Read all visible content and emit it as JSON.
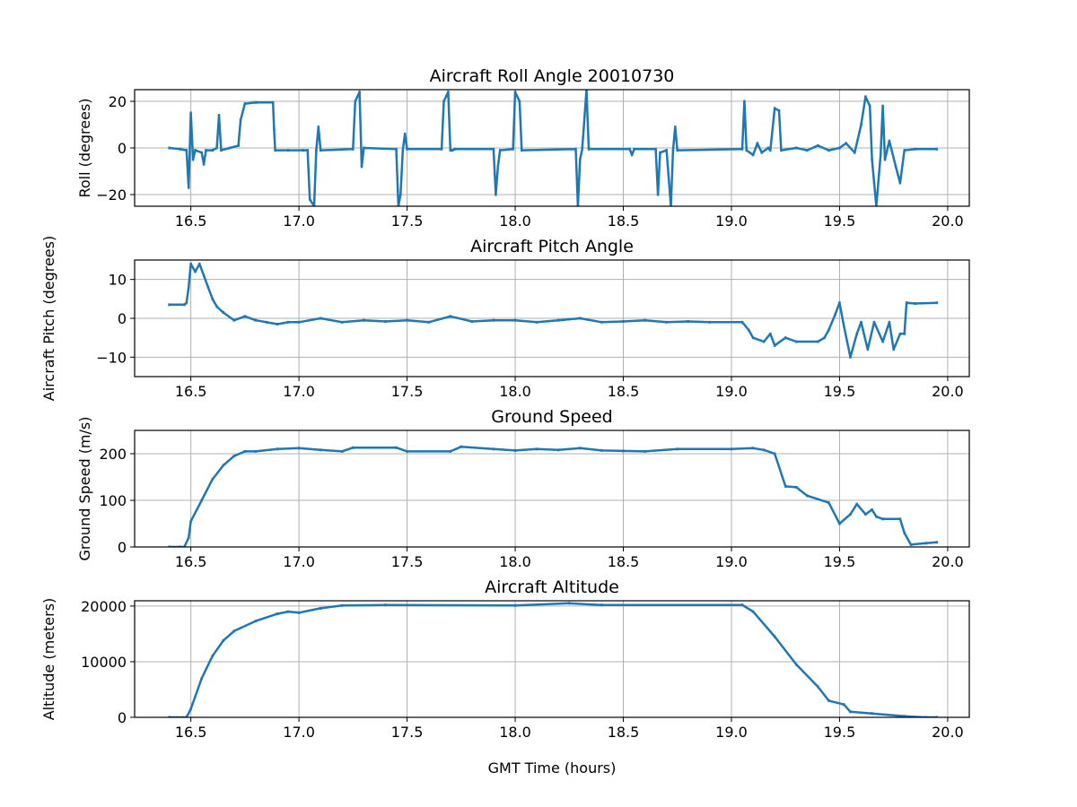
{
  "xlabel": "GMT Time (hours)",
  "chart_data": [
    {
      "type": "scatter",
      "title": "Aircraft Roll Angle 20010730",
      "ylabel": "Roll (degrees)",
      "xlim": [
        16.24,
        20.1
      ],
      "ylim": [
        -25,
        25
      ],
      "xticks": [
        "16.5",
        "17.0",
        "17.5",
        "18.0",
        "18.5",
        "19.0",
        "19.5",
        "20.0"
      ],
      "yticks": [
        -20,
        0,
        20
      ],
      "ytick_labels": [
        "−20",
        "0",
        "20"
      ],
      "grid": true,
      "color": "#1f77b4",
      "points": [
        [
          16.4,
          0
        ],
        [
          16.45,
          -0.5
        ],
        [
          16.48,
          -1
        ],
        [
          16.49,
          -17
        ],
        [
          16.5,
          15
        ],
        [
          16.51,
          -5
        ],
        [
          16.52,
          -1
        ],
        [
          16.55,
          -2
        ],
        [
          16.56,
          -7
        ],
        [
          16.57,
          -1
        ],
        [
          16.6,
          -1
        ],
        [
          16.62,
          0
        ],
        [
          16.63,
          14
        ],
        [
          16.64,
          -1
        ],
        [
          16.68,
          0
        ],
        [
          16.72,
          1
        ],
        [
          16.73,
          12
        ],
        [
          16.75,
          19
        ],
        [
          16.8,
          19.5
        ],
        [
          16.88,
          19.5
        ],
        [
          16.885,
          8
        ],
        [
          16.89,
          -1
        ],
        [
          16.95,
          -1
        ],
        [
          17.02,
          -1
        ],
        [
          17.04,
          -1
        ],
        [
          17.05,
          -22
        ],
        [
          17.07,
          -25
        ],
        [
          17.08,
          -1
        ],
        [
          17.09,
          9
        ],
        [
          17.1,
          -1
        ],
        [
          17.25,
          -0.5
        ],
        [
          17.26,
          20
        ],
        [
          17.28,
          24
        ],
        [
          17.29,
          -8
        ],
        [
          17.3,
          0
        ],
        [
          17.45,
          -0.5
        ],
        [
          17.46,
          -25
        ],
        [
          17.47,
          -20
        ],
        [
          17.48,
          -1
        ],
        [
          17.49,
          6
        ],
        [
          17.5,
          -0.5
        ],
        [
          17.66,
          -0.5
        ],
        [
          17.67,
          20
        ],
        [
          17.69,
          24
        ],
        [
          17.7,
          -1
        ],
        [
          17.71,
          -1
        ],
        [
          17.72,
          -0.5
        ],
        [
          17.9,
          -0.5
        ],
        [
          17.91,
          -20
        ],
        [
          17.92,
          -8
        ],
        [
          17.93,
          -1
        ],
        [
          17.99,
          -0.5
        ],
        [
          18.0,
          24
        ],
        [
          18.02,
          20
        ],
        [
          18.03,
          -1
        ],
        [
          18.28,
          -0.5
        ],
        [
          18.29,
          -25
        ],
        [
          18.3,
          -5
        ],
        [
          18.31,
          -0.5
        ],
        [
          18.33,
          25
        ],
        [
          18.34,
          -0.5
        ],
        [
          18.53,
          -0.5
        ],
        [
          18.54,
          -3
        ],
        [
          18.55,
          -0.5
        ],
        [
          18.65,
          -0.5
        ],
        [
          18.66,
          -20
        ],
        [
          18.67,
          -2
        ],
        [
          18.7,
          -1
        ],
        [
          18.72,
          -25
        ],
        [
          18.73,
          -1
        ],
        [
          18.74,
          9
        ],
        [
          18.75,
          -1
        ],
        [
          19.05,
          -0.5
        ],
        [
          19.06,
          20
        ],
        [
          19.07,
          -1
        ],
        [
          19.1,
          -3
        ],
        [
          19.12,
          2
        ],
        [
          19.14,
          -2
        ],
        [
          19.17,
          0
        ],
        [
          19.18,
          -1
        ],
        [
          19.2,
          17
        ],
        [
          19.22,
          16
        ],
        [
          19.23,
          -1
        ],
        [
          19.3,
          0
        ],
        [
          19.35,
          -1
        ],
        [
          19.4,
          1
        ],
        [
          19.45,
          -1
        ],
        [
          19.5,
          0
        ],
        [
          19.53,
          2
        ],
        [
          19.57,
          -2
        ],
        [
          19.6,
          10
        ],
        [
          19.62,
          22
        ],
        [
          19.64,
          18
        ],
        [
          19.65,
          -5
        ],
        [
          19.66,
          -15
        ],
        [
          19.67,
          -25
        ],
        [
          19.69,
          -3
        ],
        [
          19.7,
          18
        ],
        [
          19.71,
          -5
        ],
        [
          19.73,
          3
        ],
        [
          19.76,
          -8
        ],
        [
          19.78,
          -15
        ],
        [
          19.8,
          -1
        ],
        [
          19.85,
          -0.5
        ],
        [
          19.95,
          -0.5
        ]
      ]
    },
    {
      "type": "scatter",
      "title": "Aircraft Pitch Angle",
      "ylabel": "Aircraft Pitch (degrees)",
      "xlim": [
        16.24,
        20.1
      ],
      "ylim": [
        -15,
        15
      ],
      "xticks": [
        "16.5",
        "17.0",
        "17.5",
        "18.0",
        "18.5",
        "19.0",
        "19.5",
        "20.0"
      ],
      "yticks": [
        -10,
        0,
        10
      ],
      "ytick_labels": [
        "−10",
        "0",
        "10"
      ],
      "grid": true,
      "color": "#1f77b4",
      "points": [
        [
          16.4,
          3.5
        ],
        [
          16.47,
          3.5
        ],
        [
          16.48,
          4
        ],
        [
          16.49,
          8
        ],
        [
          16.5,
          14
        ],
        [
          16.52,
          12
        ],
        [
          16.54,
          14
        ],
        [
          16.56,
          11
        ],
        [
          16.58,
          8
        ],
        [
          16.6,
          5
        ],
        [
          16.62,
          3
        ],
        [
          16.65,
          1.5
        ],
        [
          16.7,
          -0.5
        ],
        [
          16.75,
          0.5
        ],
        [
          16.8,
          -0.5
        ],
        [
          16.85,
          -1
        ],
        [
          16.9,
          -1.5
        ],
        [
          16.95,
          -1
        ],
        [
          17.0,
          -1
        ],
        [
          17.1,
          0
        ],
        [
          17.2,
          -1
        ],
        [
          17.3,
          -0.5
        ],
        [
          17.4,
          -0.8
        ],
        [
          17.5,
          -0.5
        ],
        [
          17.6,
          -1
        ],
        [
          17.7,
          0.5
        ],
        [
          17.8,
          -0.8
        ],
        [
          17.9,
          -0.5
        ],
        [
          18.0,
          -0.5
        ],
        [
          18.1,
          -1
        ],
        [
          18.2,
          -0.5
        ],
        [
          18.3,
          0
        ],
        [
          18.4,
          -1
        ],
        [
          18.5,
          -0.8
        ],
        [
          18.6,
          -0.5
        ],
        [
          18.7,
          -1
        ],
        [
          18.8,
          -0.8
        ],
        [
          18.9,
          -1
        ],
        [
          19.05,
          -1
        ],
        [
          19.08,
          -3
        ],
        [
          19.1,
          -5
        ],
        [
          19.15,
          -6
        ],
        [
          19.18,
          -4
        ],
        [
          19.2,
          -7
        ],
        [
          19.25,
          -5
        ],
        [
          19.3,
          -6
        ],
        [
          19.4,
          -6
        ],
        [
          19.43,
          -5
        ],
        [
          19.45,
          -3
        ],
        [
          19.48,
          1
        ],
        [
          19.5,
          4
        ],
        [
          19.52,
          -2
        ],
        [
          19.55,
          -10
        ],
        [
          19.58,
          -4
        ],
        [
          19.6,
          -1
        ],
        [
          19.63,
          -8
        ],
        [
          19.66,
          -1
        ],
        [
          19.7,
          -6
        ],
        [
          19.73,
          -1
        ],
        [
          19.75,
          -8
        ],
        [
          19.78,
          -4
        ],
        [
          19.8,
          -4
        ],
        [
          19.81,
          4
        ],
        [
          19.85,
          3.8
        ],
        [
          19.95,
          4
        ]
      ]
    },
    {
      "type": "scatter",
      "title": "Ground Speed",
      "ylabel": "Ground Speed (m/s)",
      "xlim": [
        16.24,
        20.1
      ],
      "ylim": [
        0,
        250
      ],
      "xticks": [
        "16.5",
        "17.0",
        "17.5",
        "18.0",
        "18.5",
        "19.0",
        "19.5",
        "20.0"
      ],
      "yticks": [
        0,
        100,
        200
      ],
      "ytick_labels": [
        "0",
        "100",
        "200"
      ],
      "grid": true,
      "color": "#1f77b4",
      "points": [
        [
          16.4,
          0
        ],
        [
          16.45,
          0
        ],
        [
          16.47,
          0
        ],
        [
          16.49,
          20
        ],
        [
          16.5,
          55
        ],
        [
          16.55,
          100
        ],
        [
          16.6,
          145
        ],
        [
          16.65,
          175
        ],
        [
          16.7,
          195
        ],
        [
          16.75,
          205
        ],
        [
          16.8,
          205
        ],
        [
          16.9,
          210
        ],
        [
          17.0,
          212
        ],
        [
          17.1,
          208
        ],
        [
          17.2,
          205
        ],
        [
          17.25,
          213
        ],
        [
          17.45,
          213
        ],
        [
          17.5,
          205
        ],
        [
          17.7,
          205
        ],
        [
          17.75,
          215
        ],
        [
          17.9,
          210
        ],
        [
          18.0,
          207
        ],
        [
          18.1,
          210
        ],
        [
          18.2,
          208
        ],
        [
          18.3,
          212
        ],
        [
          18.4,
          207
        ],
        [
          18.5,
          206
        ],
        [
          18.6,
          205
        ],
        [
          18.75,
          210
        ],
        [
          19.0,
          210
        ],
        [
          19.1,
          212
        ],
        [
          19.15,
          208
        ],
        [
          19.2,
          200
        ],
        [
          19.25,
          130
        ],
        [
          19.3,
          128
        ],
        [
          19.35,
          110
        ],
        [
          19.45,
          95
        ],
        [
          19.5,
          50
        ],
        [
          19.55,
          70
        ],
        [
          19.58,
          92
        ],
        [
          19.62,
          70
        ],
        [
          19.65,
          80
        ],
        [
          19.67,
          65
        ],
        [
          19.7,
          60
        ],
        [
          19.78,
          60
        ],
        [
          19.8,
          30
        ],
        [
          19.83,
          5
        ],
        [
          19.9,
          8
        ],
        [
          19.95,
          10
        ]
      ]
    },
    {
      "type": "scatter",
      "title": "Aircraft Altitude",
      "ylabel": "Altitude (meters)",
      "xlim": [
        16.24,
        20.1
      ],
      "ylim": [
        0,
        20950
      ],
      "xticks": [
        "16.5",
        "17.0",
        "17.5",
        "18.0",
        "18.5",
        "19.0",
        "19.5",
        "20.0"
      ],
      "yticks": [
        0,
        10000,
        20000
      ],
      "ytick_labels": [
        "0",
        "10000",
        "20000"
      ],
      "grid": true,
      "color": "#1f77b4",
      "points": [
        [
          16.4,
          0
        ],
        [
          16.48,
          0
        ],
        [
          16.5,
          1500
        ],
        [
          16.55,
          7000
        ],
        [
          16.6,
          11000
        ],
        [
          16.65,
          13800
        ],
        [
          16.7,
          15500
        ],
        [
          16.8,
          17300
        ],
        [
          16.9,
          18600
        ],
        [
          16.95,
          19000
        ],
        [
          17.0,
          18800
        ],
        [
          17.1,
          19600
        ],
        [
          17.2,
          20100
        ],
        [
          17.4,
          20200
        ],
        [
          18.0,
          20100
        ],
        [
          18.25,
          20500
        ],
        [
          18.4,
          20200
        ],
        [
          19.05,
          20200
        ],
        [
          19.1,
          19000
        ],
        [
          19.2,
          14500
        ],
        [
          19.3,
          9500
        ],
        [
          19.4,
          5500
        ],
        [
          19.45,
          3000
        ],
        [
          19.52,
          2300
        ],
        [
          19.55,
          1000
        ],
        [
          19.65,
          700
        ],
        [
          19.8,
          200
        ],
        [
          19.9,
          0
        ],
        [
          19.95,
          0
        ]
      ]
    }
  ]
}
